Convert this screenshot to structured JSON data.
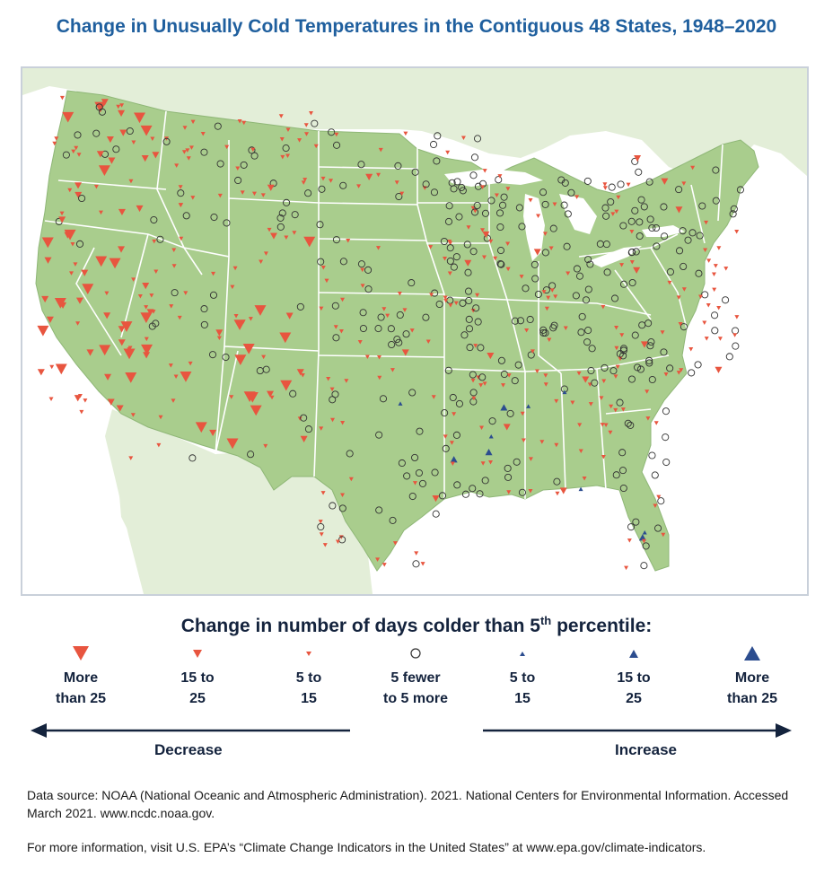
{
  "title": "Change in Unusually Cold Temperatures in the Contiguous 48 States, 1948–2020",
  "legend": {
    "title": "Change in number of days colder than 5",
    "title_sup": "th",
    "title_suffix": " percentile:",
    "items": [
      {
        "label": "More\nthan 25",
        "symbol": "triangle-down-large",
        "color": "#e8553f"
      },
      {
        "label": "15 to\n25",
        "symbol": "triangle-down-medium",
        "color": "#e8553f"
      },
      {
        "label": "5 to\n15",
        "symbol": "triangle-down-small",
        "color": "#e8553f"
      },
      {
        "label": "5 fewer\nto 5 more",
        "symbol": "circle-open",
        "color": "#333333"
      },
      {
        "label": "5 to\n15",
        "symbol": "triangle-up-small",
        "color": "#2c4d8f"
      },
      {
        "label": "15 to\n25",
        "symbol": "triangle-up-medium",
        "color": "#2c4d8f"
      },
      {
        "label": "More\nthan 25",
        "symbol": "triangle-up-large",
        "color": "#2c4d8f"
      }
    ],
    "decrease_label": "Decrease",
    "increase_label": "Increase"
  },
  "source_note": "Data source: NOAA (National Oceanic and Atmospheric Administration). 2021. National Centers for Environmental Information. Accessed March 2021. www.ncdc.noaa.gov.",
  "info_note": "For more information, visit U.S. EPA’s “Climate Change Indicators in the United States” at www.epa.gov/climate-indicators.",
  "colors": {
    "land": "#a9cd8d",
    "neighbor_land": "#e3eed8",
    "water": "#ffffff",
    "state_border": "#ffffff",
    "decrease": "#e8553f",
    "increase": "#2c4d8f",
    "no_change": "#333333",
    "title": "#1f5f9e",
    "legend_text": "#14233d"
  },
  "stations_by_region": {
    "pacific_northwest": {
      "dominant": "decrease",
      "mix": [
        "triangle-down-small",
        "triangle-down-medium",
        "triangle-down-large",
        "circle-open"
      ]
    },
    "california": {
      "dominant": "decrease",
      "mix": [
        "triangle-down-large",
        "triangle-down-medium",
        "triangle-down-small"
      ]
    },
    "southwest": {
      "dominant": "decrease",
      "mix": [
        "triangle-down-large",
        "triangle-down-medium",
        "triangle-down-small",
        "circle-open"
      ]
    },
    "midwest": {
      "dominant": "no-change",
      "mix": [
        "circle-open",
        "triangle-down-small"
      ]
    },
    "southeast": {
      "dominant": "mixed",
      "mix": [
        "circle-open",
        "triangle-down-small",
        "triangle-up-small",
        "triangle-up-medium"
      ]
    },
    "northeast": {
      "dominant": "mixed",
      "mix": [
        "circle-open",
        "triangle-down-small",
        "triangle-down-medium"
      ]
    }
  }
}
